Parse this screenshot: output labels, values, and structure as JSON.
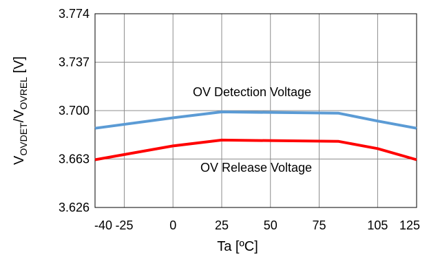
{
  "chart_data": {
    "type": "line",
    "title": "",
    "xlabel": "Ta [ºC]",
    "ylabel": {
      "main": "V",
      "sub1": "OVDET",
      "sep": "/V",
      "sub2": "OVREL",
      "unit": " [V]"
    },
    "xlim": [
      -40,
      125
    ],
    "ylim": [
      3.626,
      3.774
    ],
    "xticks": [
      -40,
      -25,
      0,
      25,
      50,
      75,
      105,
      125
    ],
    "yticks": [
      3.626,
      3.663,
      3.7,
      3.737,
      3.774
    ],
    "xtick_labels": [
      "-40",
      "-25",
      "0",
      "25",
      "50",
      "75",
      "105",
      "125"
    ],
    "ytick_labels": [
      "3.626",
      "3.663",
      "3.700",
      "3.737",
      "3.774"
    ],
    "grid": true,
    "annotations": {
      "detection": "OV Detection Voltage",
      "release": "OV Release Voltage"
    },
    "series": [
      {
        "color": "#5B9BD5",
        "x": [
          -40,
          0,
          25,
          85,
          105,
          125
        ],
        "y": [
          3.6865,
          3.6945,
          3.699,
          3.698,
          3.692,
          3.6865
        ]
      },
      {
        "color": "#FF0000",
        "x": [
          -40,
          0,
          25,
          85,
          105,
          125
        ],
        "y": [
          3.6625,
          3.673,
          3.6775,
          3.6765,
          3.671,
          3.6625
        ]
      }
    ]
  }
}
